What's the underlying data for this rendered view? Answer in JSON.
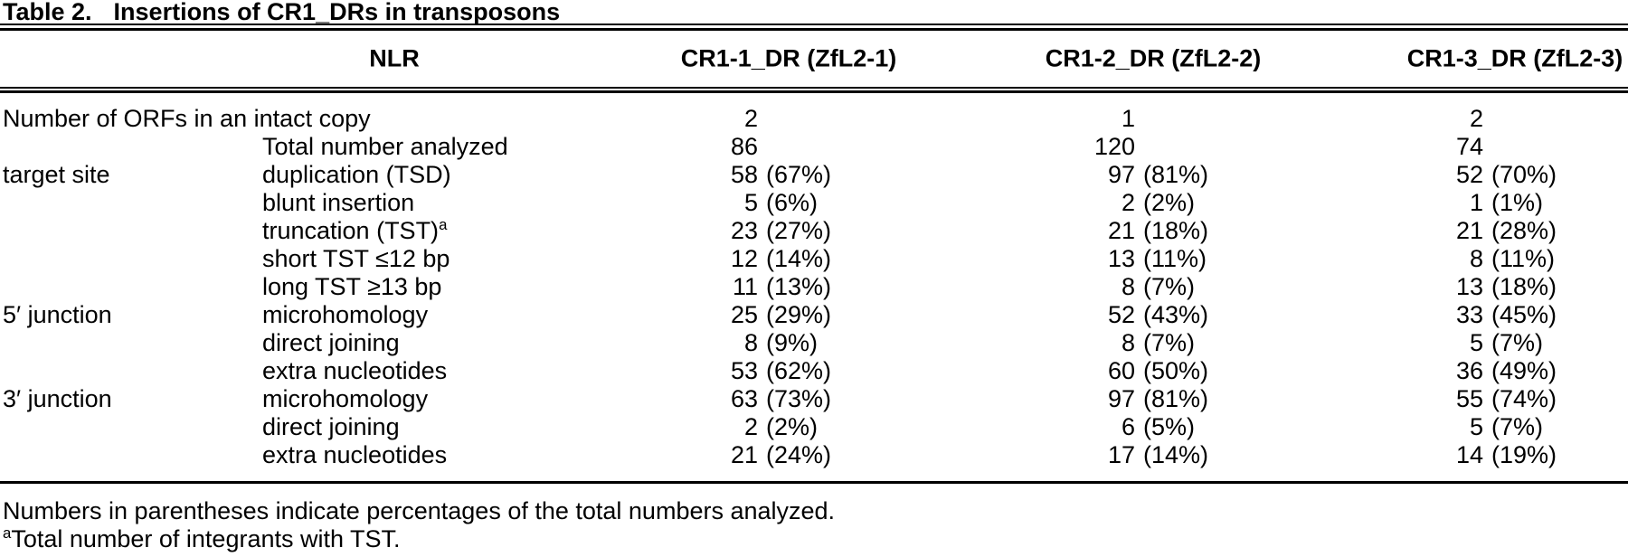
{
  "title": {
    "label": "Table 2.",
    "caption": "Insertions of CR1_DRs in transposons"
  },
  "table": {
    "columns": [
      "NLR",
      "CR1-1_DR (ZfL2-1)",
      "CR1-2_DR (ZfL2-2)",
      "CR1-3_DR (ZfL2-3)"
    ],
    "rows": [
      {
        "group": "Number of ORFs in an intact copy",
        "span2": true,
        "label": "",
        "values": [
          [
            "2",
            ""
          ],
          [
            "1",
            ""
          ],
          [
            "2",
            ""
          ]
        ]
      },
      {
        "group": "",
        "label": "Total number analyzed",
        "values": [
          [
            "86",
            ""
          ],
          [
            "120",
            ""
          ],
          [
            "74",
            ""
          ]
        ]
      },
      {
        "group": "target site",
        "label": "duplication (TSD)",
        "values": [
          [
            "58",
            "(67%)"
          ],
          [
            "97",
            "(81%)"
          ],
          [
            "52",
            "(70%)"
          ]
        ]
      },
      {
        "group": "",
        "label": "blunt insertion",
        "values": [
          [
            "5",
            "(6%)"
          ],
          [
            "2",
            "(2%)"
          ],
          [
            "1",
            "(1%)"
          ]
        ]
      },
      {
        "group": "",
        "label": "truncation (TST)",
        "sup": "a",
        "values": [
          [
            "23",
            "(27%)"
          ],
          [
            "21",
            "(18%)"
          ],
          [
            "21",
            "(28%)"
          ]
        ]
      },
      {
        "group": "",
        "label": "short TST ≤12 bp",
        "values": [
          [
            "12",
            "(14%)"
          ],
          [
            "13",
            "(11%)"
          ],
          [
            "8",
            "(11%)"
          ]
        ]
      },
      {
        "group": "",
        "label": "long TST ≥13 bp",
        "values": [
          [
            "11",
            "(13%)"
          ],
          [
            "8",
            "(7%)"
          ],
          [
            "13",
            "(18%)"
          ]
        ]
      },
      {
        "group": "5′ junction",
        "label": "microhomology",
        "values": [
          [
            "25",
            "(29%)"
          ],
          [
            "52",
            "(43%)"
          ],
          [
            "33",
            "(45%)"
          ]
        ]
      },
      {
        "group": "",
        "label": "direct joining",
        "values": [
          [
            "8",
            "(9%)"
          ],
          [
            "8",
            "(7%)"
          ],
          [
            "5",
            "(7%)"
          ]
        ]
      },
      {
        "group": "",
        "label": "extra nucleotides",
        "values": [
          [
            "53",
            "(62%)"
          ],
          [
            "60",
            "(50%)"
          ],
          [
            "36",
            "(49%)"
          ]
        ]
      },
      {
        "group": "3′ junction",
        "label": "microhomology",
        "values": [
          [
            "63",
            "(73%)"
          ],
          [
            "97",
            "(81%)"
          ],
          [
            "55",
            "(74%)"
          ]
        ]
      },
      {
        "group": "",
        "label": "direct joining",
        "values": [
          [
            "2",
            "(2%)"
          ],
          [
            "6",
            "(5%)"
          ],
          [
            "5",
            "(7%)"
          ]
        ]
      },
      {
        "group": "",
        "label": "extra nucleotides",
        "values": [
          [
            "21",
            "(24%)"
          ],
          [
            "17",
            "(14%)"
          ],
          [
            "14",
            "(19%)"
          ]
        ]
      }
    ]
  },
  "footnotes": {
    "line1": "Numbers in parentheses indicate percentages of the total numbers analyzed.",
    "line2_sup": "a",
    "line2": "Total number of integrants with TST."
  },
  "colors": {
    "text": "#000000",
    "background": "#ffffff",
    "rule": "#000000"
  }
}
